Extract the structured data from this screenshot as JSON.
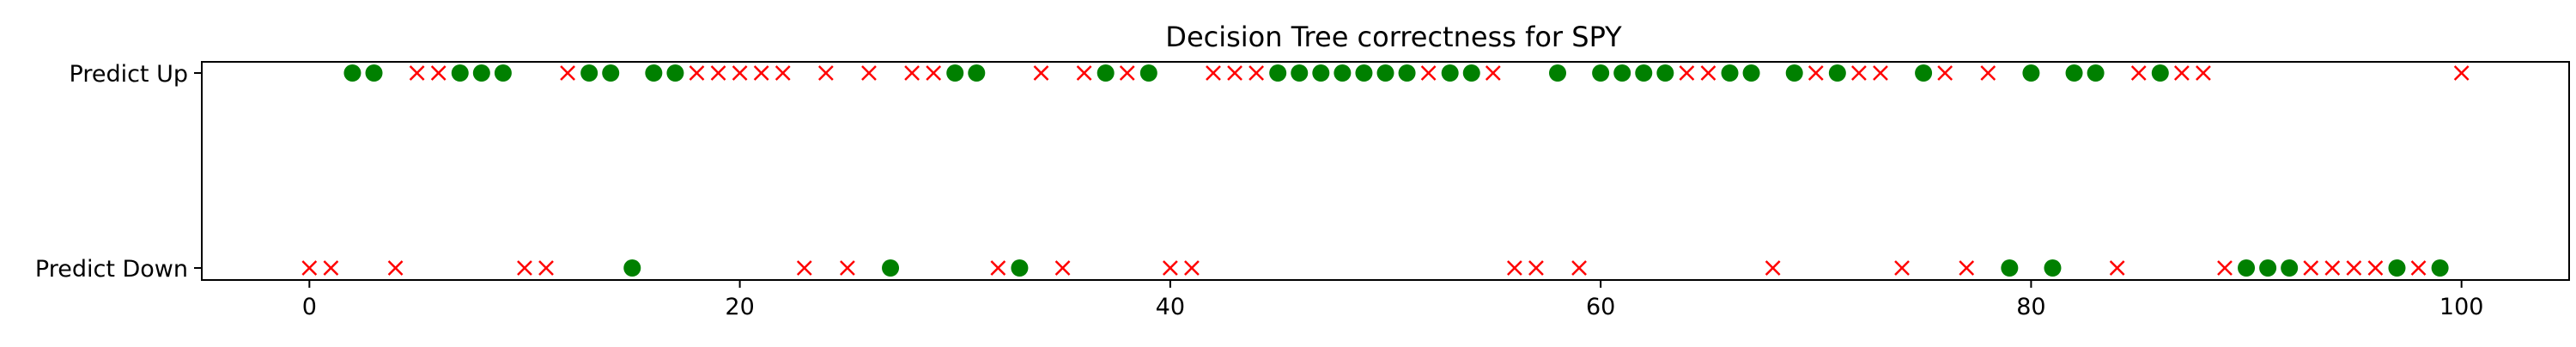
{
  "chart_data": {
    "type": "scatter",
    "title": "Decision Tree correctness for SPY",
    "xlabel": "",
    "ylabel": "",
    "xlim": [
      -5,
      105
    ],
    "x_ticks": [
      0,
      20,
      40,
      60,
      80,
      100
    ],
    "categories": [
      "Predict Down",
      "Predict Up"
    ],
    "grid": false,
    "legend": "none",
    "series": [
      {
        "marker": "circle",
        "color": "#008000",
        "up_x": [
          2,
          3,
          7,
          8,
          9,
          13,
          14,
          16,
          17,
          30,
          31,
          37,
          39,
          45,
          46,
          47,
          48,
          49,
          50,
          51,
          53,
          54,
          58,
          60,
          61,
          62,
          63,
          66,
          67,
          69,
          71,
          75,
          80,
          82,
          83,
          86
        ],
        "down_x": [
          15,
          27,
          33,
          79,
          81,
          90,
          91,
          92,
          97,
          99
        ]
      },
      {
        "marker": "x",
        "color": "#ff0000",
        "up_x": [
          5,
          6,
          12,
          18,
          19,
          20,
          21,
          22,
          24,
          26,
          28,
          29,
          34,
          36,
          38,
          42,
          43,
          44,
          52,
          55,
          64,
          65,
          70,
          72,
          73,
          76,
          78,
          85,
          87,
          88,
          100
        ],
        "down_x": [
          0,
          1,
          4,
          10,
          11,
          23,
          25,
          32,
          35,
          40,
          41,
          56,
          57,
          59,
          68,
          74,
          77,
          84,
          89,
          93,
          94,
          95,
          96,
          98
        ]
      }
    ]
  }
}
